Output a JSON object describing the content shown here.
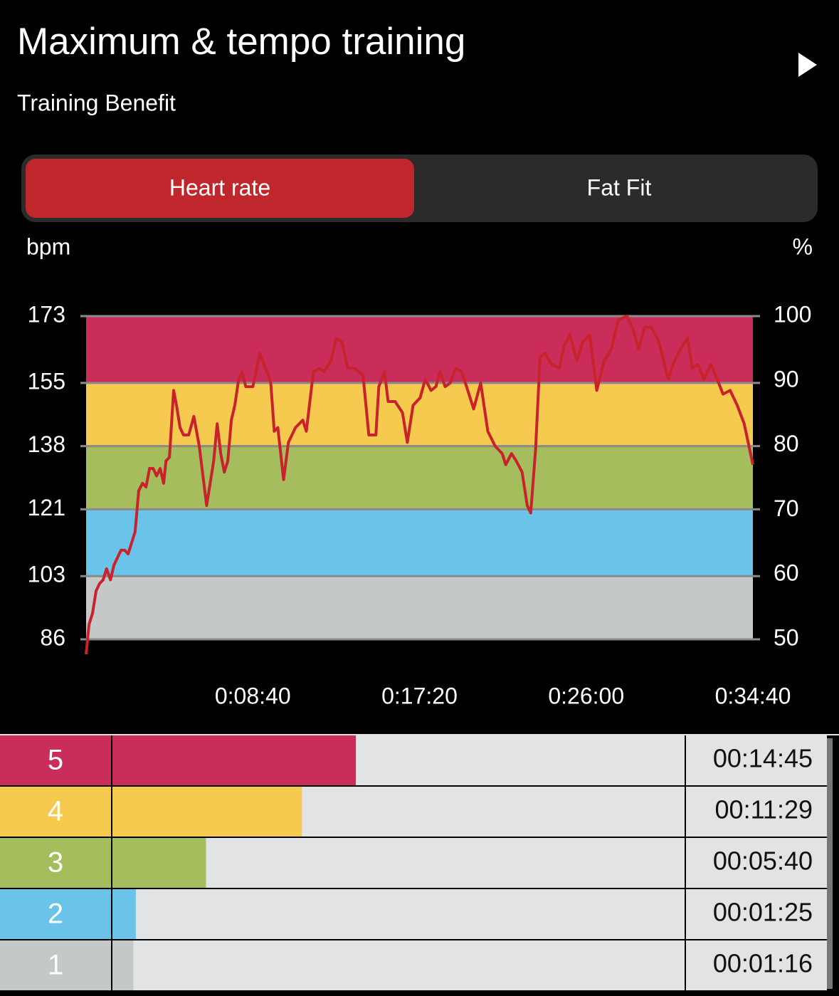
{
  "header": {
    "title": "Maximum & tempo training",
    "subtitle": "Training Benefit"
  },
  "tabs": [
    {
      "label": "Heart rate",
      "active": true
    },
    {
      "label": "Fat Fit",
      "active": false
    }
  ],
  "chart_data": {
    "type": "line",
    "y_label": "bpm",
    "y2_label": "%",
    "x": [
      0,
      9,
      20,
      31,
      42,
      53,
      64,
      76,
      87,
      98,
      109,
      120,
      131,
      142,
      153,
      164,
      176,
      187,
      198,
      209,
      220,
      231,
      242,
      249,
      260,
      273,
      282,
      293,
      304,
      320,
      336,
      353,
      376,
      398,
      409,
      420,
      431,
      442,
      453,
      464,
      476,
      487,
      498,
      520,
      542,
      564,
      576,
      587,
      598,
      616,
      631,
      653,
      676,
      687,
      698,
      709,
      727,
      742,
      764,
      780,
      798,
      816,
      838,
      864,
      882,
      904,
      913,
      931,
      942,
      964,
      987,
      1002,
      1020,
      1042,
      1058,
      1076,
      1091,
      1104,
      1120,
      1136,
      1153,
      1171,
      1187,
      1209,
      1231,
      1253,
      1276,
      1298,
      1309,
      1327,
      1342,
      1360,
      1376,
      1387,
      1402,
      1416,
      1431,
      1453,
      1476,
      1491,
      1509,
      1531,
      1549,
      1571,
      1593,
      1616,
      1638,
      1660,
      1687,
      1704,
      1724,
      1742,
      1764,
      1787,
      1816,
      1831,
      1853,
      1876,
      1891,
      1909,
      1927,
      1949,
      1964,
      1987,
      2009,
      2031,
      2053,
      2080
    ],
    "series": [
      {
        "color": "#c8232c",
        "values": [
          82,
          90,
          93,
          99,
          101,
          102,
          105,
          102,
          106,
          108,
          110,
          110,
          109,
          112,
          115,
          126,
          128,
          127,
          132,
          132,
          130,
          132,
          128,
          134,
          135,
          153,
          149,
          143,
          141,
          141,
          146,
          138,
          122,
          134,
          144,
          136,
          131,
          134,
          145,
          149,
          156,
          158,
          154,
          154,
          163,
          158,
          155,
          142,
          143,
          129,
          139,
          143,
          145,
          142,
          150,
          158,
          159,
          158,
          161,
          167,
          166,
          159,
          159,
          157,
          141,
          141,
          154,
          158,
          150,
          150,
          147,
          139,
          149,
          151,
          156,
          153,
          154,
          158,
          154,
          155,
          159,
          158,
          154,
          148,
          155,
          142,
          138,
          136,
          133,
          136,
          134,
          131,
          122,
          120,
          137,
          162,
          163,
          160,
          159,
          165,
          168,
          161,
          166,
          168,
          153,
          161,
          164,
          172,
          173,
          170,
          164,
          170,
          170,
          166,
          156,
          160,
          164,
          167,
          159,
          160,
          156,
          160,
          157,
          152,
          153,
          149,
          144,
          133
        ]
      }
    ],
    "xlim": [
      0,
      2080
    ],
    "xticks": [
      {
        "value": 520,
        "label": "0:08:40"
      },
      {
        "value": 1040,
        "label": "0:17:20"
      },
      {
        "value": 1560,
        "label": "0:26:00"
      },
      {
        "value": 2080,
        "label": "0:34:40"
      }
    ],
    "ylim": [
      86,
      173
    ],
    "yticks": [
      86,
      103,
      121,
      138,
      155,
      173
    ],
    "y2lim": [
      50,
      100
    ],
    "y2ticks": [
      50,
      60,
      70,
      80,
      90,
      100
    ],
    "band_colors": [
      "#c4c8c8",
      "#6ac3e8",
      "#a5bd5c",
      "#f6c94f",
      "#cb2d5a"
    ]
  },
  "zone_table": {
    "xlim": [
      0,
      2080
    ],
    "rows": [
      {
        "zone": 5,
        "time": "00:14:45",
        "seconds": 885,
        "color": "#cb2d5a"
      },
      {
        "zone": 4,
        "time": "00:11:29",
        "seconds": 689,
        "color": "#f6c94f"
      },
      {
        "zone": 3,
        "time": "00:05:40",
        "seconds": 340,
        "color": "#a5bd5c"
      },
      {
        "zone": 2,
        "time": "00:01:25",
        "seconds": 85,
        "color": "#6ac3e8"
      },
      {
        "zone": 1,
        "time": "00:01:16",
        "seconds": 76,
        "color": "#c4c8c8"
      }
    ]
  }
}
